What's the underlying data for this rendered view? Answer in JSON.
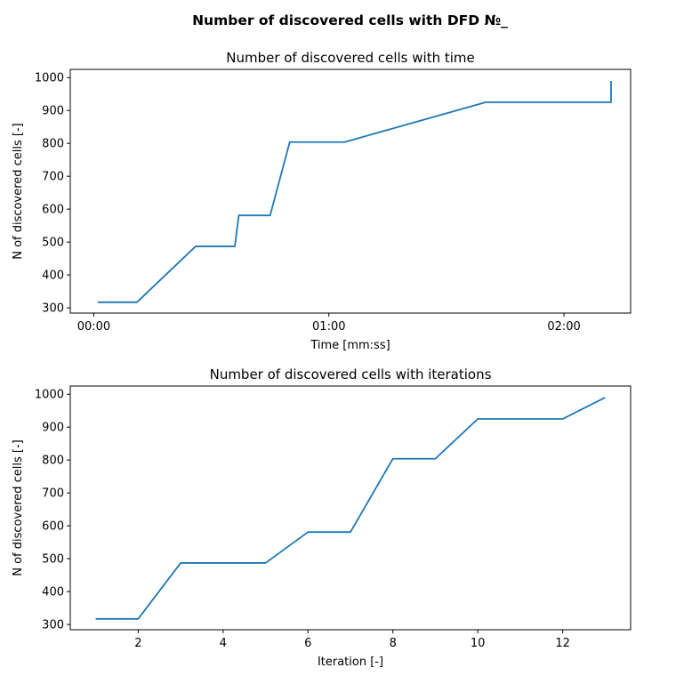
{
  "suptitle": "Number of discovered cells with DFD №_",
  "colors": {
    "series": "#1f77b4"
  },
  "chart_data": [
    {
      "type": "line",
      "title": "Number of discovered cells with time",
      "xlabel": "Time [mm:ss]",
      "ylabel": "N of discovered cells [-]",
      "x_unit": "seconds",
      "xlim": [
        -6,
        137
      ],
      "ylim": [
        284,
        1025
      ],
      "xticks": [
        0,
        60,
        120
      ],
      "xtick_labels": [
        "00:00",
        "01:00",
        "02:00"
      ],
      "yticks": [
        300,
        400,
        500,
        600,
        700,
        800,
        900,
        1000
      ],
      "ytick_labels": [
        "300",
        "400",
        "500",
        "600",
        "700",
        "800",
        "900",
        "1000"
      ],
      "series": [
        {
          "name": "discovered cells",
          "x": [
            1,
            11,
            26,
            36,
            37,
            45,
            50,
            64,
            100,
            132,
            132
          ],
          "y": [
            317,
            317,
            487,
            487,
            581,
            581,
            804,
            804,
            925,
            925,
            990
          ]
        }
      ]
    },
    {
      "type": "line",
      "title": "Number of discovered cells with iterations",
      "xlabel": "Iteration [-]",
      "ylabel": "N of discovered cells [-]",
      "xlim": [
        0.4,
        13.6
      ],
      "ylim": [
        284,
        1025
      ],
      "xticks": [
        2,
        4,
        6,
        8,
        10,
        12
      ],
      "xtick_labels": [
        "2",
        "4",
        "6",
        "8",
        "10",
        "12"
      ],
      "yticks": [
        300,
        400,
        500,
        600,
        700,
        800,
        900,
        1000
      ],
      "ytick_labels": [
        "300",
        "400",
        "500",
        "600",
        "700",
        "800",
        "900",
        "1000"
      ],
      "series": [
        {
          "name": "discovered cells",
          "x": [
            1,
            2,
            3,
            4,
            5,
            6,
            7,
            8,
            9,
            10,
            11,
            12,
            13
          ],
          "y": [
            317,
            317,
            487,
            487,
            487,
            581,
            581,
            804,
            804,
            925,
            925,
            925,
            990
          ]
        }
      ]
    }
  ]
}
